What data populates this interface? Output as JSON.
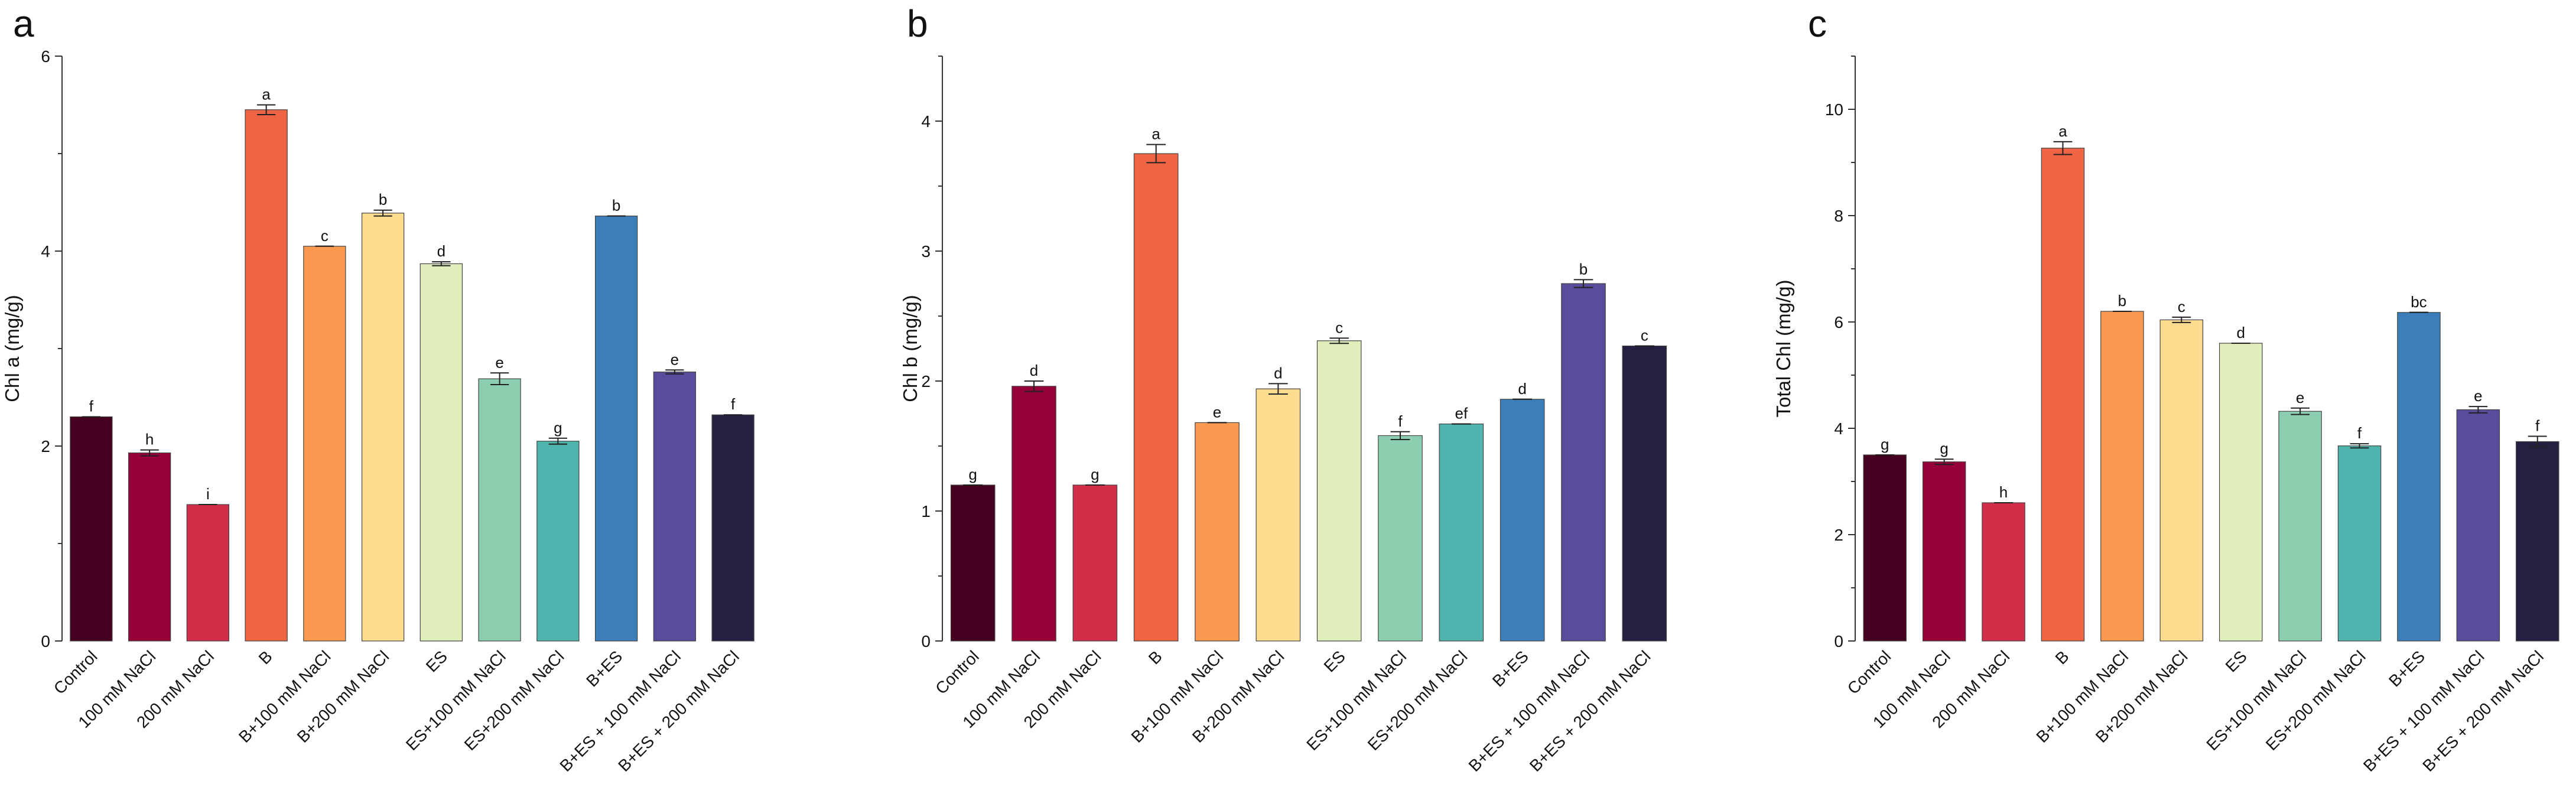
{
  "figure": {
    "categories": [
      "Control",
      "100 mM NaCl",
      "200 mM NaCl",
      "B",
      "B+100 mM NaCl",
      "B+200 mM NaCl",
      "ES",
      "ES+100 mM NaCl",
      "ES+200 mM NaCl",
      "B+ES",
      "B+ES + 100 mM NaCl",
      "B+ES + 200 mM NaCl"
    ],
    "colors": [
      "#46001f",
      "#970239",
      "#d22e4a",
      "#ef6445",
      "#fb9950",
      "#fedc8f",
      "#dfeebb",
      "#8ccfb0",
      "#4fb4ad",
      "#3b7eb9",
      "#5a4b9c",
      "#271f42"
    ]
  },
  "chart_data": [
    {
      "panel_label": "a",
      "type": "bar",
      "title": "",
      "xlabel": "",
      "ylabel": "Chl a (mg/g)",
      "ylim": [
        0,
        6
      ],
      "yticks": [
        0,
        2,
        4,
        6
      ],
      "minor_yticks": [
        1,
        3,
        5
      ],
      "values": [
        2.3,
        1.93,
        1.4,
        5.45,
        4.05,
        4.39,
        3.87,
        2.69,
        2.05,
        4.36,
        2.76,
        2.32
      ],
      "errors": [
        0.0,
        0.03,
        0.0,
        0.05,
        0.0,
        0.03,
        0.02,
        0.06,
        0.03,
        0.0,
        0.02,
        0.0
      ],
      "letters": [
        "f",
        "h",
        "i",
        "a",
        "c",
        "b",
        "d",
        "e",
        "g",
        "b",
        "e",
        "f"
      ]
    },
    {
      "panel_label": "b",
      "type": "bar",
      "title": "",
      "xlabel": "",
      "ylabel": "Chl b (mg/g)",
      "ylim": [
        0,
        4.5
      ],
      "yticks": [
        0,
        1,
        2,
        3,
        4
      ],
      "minor_yticks": [
        0.5,
        1.5,
        2.5,
        3.5,
        4.5
      ],
      "values": [
        1.2,
        1.96,
        1.2,
        3.75,
        1.68,
        1.94,
        2.31,
        1.58,
        1.67,
        1.86,
        2.75,
        2.27
      ],
      "errors": [
        0.0,
        0.04,
        0.0,
        0.07,
        0.0,
        0.04,
        0.02,
        0.03,
        0.0,
        0.0,
        0.03,
        0.0
      ],
      "letters": [
        "g",
        "d",
        "g",
        "a",
        "e",
        "d",
        "c",
        "f",
        "ef",
        "d",
        "b",
        "c"
      ]
    },
    {
      "panel_label": "c",
      "type": "bar",
      "title": "",
      "xlabel": "",
      "ylabel": "Total Chl (mg/g)",
      "ylim": [
        0,
        11
      ],
      "yticks": [
        0,
        2,
        4,
        6,
        8,
        10
      ],
      "minor_yticks": [
        1,
        3,
        5,
        7,
        9,
        11
      ],
      "values": [
        3.5,
        3.37,
        2.6,
        9.27,
        6.2,
        6.04,
        5.6,
        4.32,
        3.67,
        6.18,
        4.35,
        3.75
      ],
      "errors": [
        0.0,
        0.05,
        0.0,
        0.12,
        0.0,
        0.05,
        0.0,
        0.06,
        0.04,
        0.0,
        0.06,
        0.1
      ],
      "letters": [
        "g",
        "g",
        "h",
        "a",
        "b",
        "c",
        "d",
        "e",
        "f",
        "bc",
        "e",
        "f"
      ]
    }
  ]
}
